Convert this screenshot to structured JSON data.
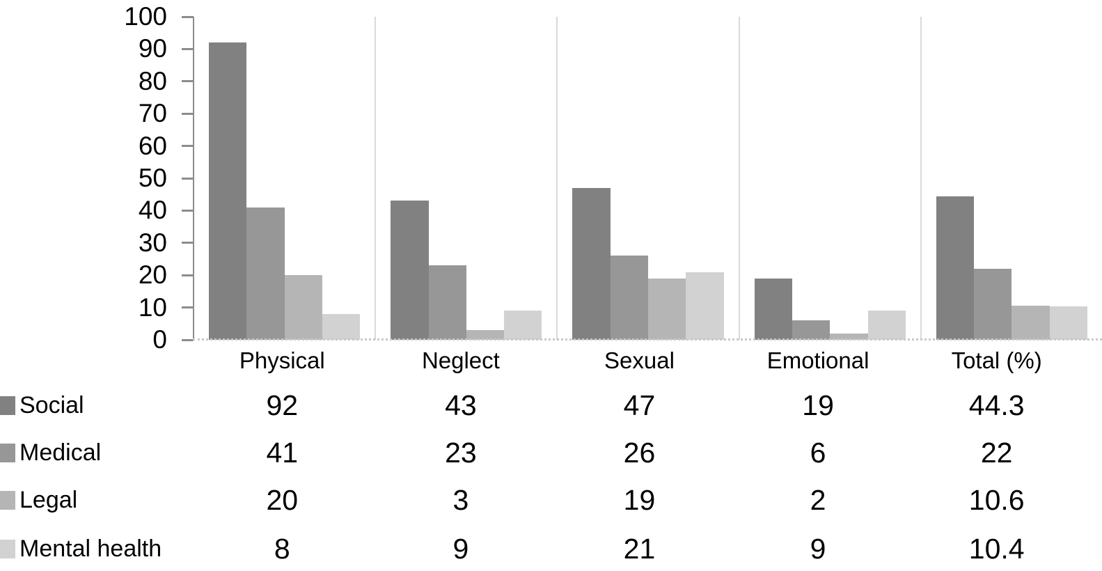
{
  "chart_data": {
    "type": "bar",
    "title": "",
    "xlabel": "",
    "ylabel": "",
    "categories": [
      "Physical",
      "Neglect",
      "Sexual",
      "Emotional",
      "Total (%)"
    ],
    "series": [
      {
        "name": "Social",
        "color": "#818181",
        "values": [
          92,
          43,
          47,
          19,
          44.3
        ]
      },
      {
        "name": "Medical",
        "color": "#979797",
        "values": [
          41,
          23,
          26,
          6,
          22
        ]
      },
      {
        "name": "Legal",
        "color": "#b5b5b5",
        "values": [
          20,
          3,
          19,
          2,
          10.6
        ]
      },
      {
        "name": "Mental health",
        "color": "#d2d2d2",
        "values": [
          8,
          9,
          21,
          9,
          10.4
        ]
      }
    ],
    "ylim": [
      0,
      100
    ],
    "ytick_step": 10,
    "ytick_labels": [
      "100",
      "90",
      "80",
      "70",
      "60",
      "50",
      "40",
      "30",
      "20",
      "10",
      "0"
    ],
    "grid": "vertical separators between category groups",
    "legend_position": "table rows below chart, swatches at left",
    "baseline_style": "dotted",
    "colors": {
      "axis": "#8c8c8c",
      "separator": "#d9d9d9",
      "baseline_dots": "#c8c8c8",
      "text": "#000000",
      "background": "#ffffff"
    }
  }
}
